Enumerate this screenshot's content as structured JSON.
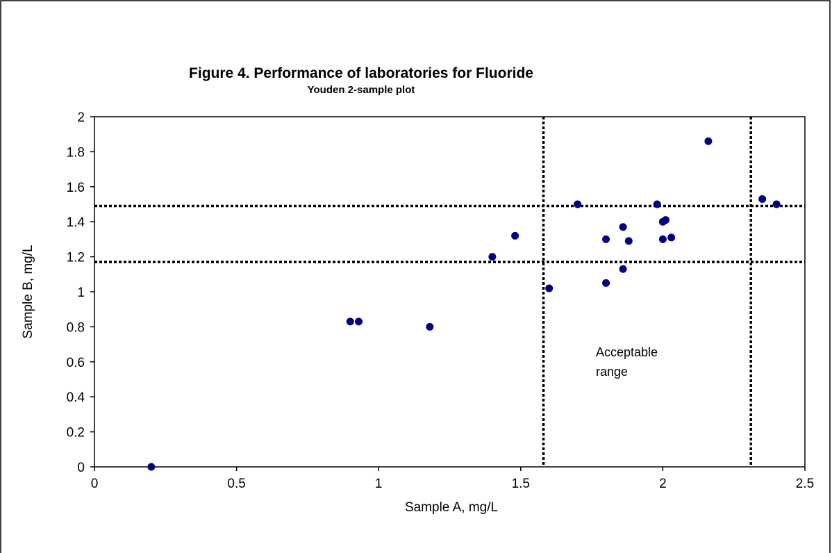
{
  "chart_data": {
    "type": "scatter",
    "title": "Figure 4. Performance of laboratories for Fluoride",
    "subtitle": "Youden 2-sample plot",
    "x_label": "Sample A, mg/L",
    "y_label": "Sample B, mg/L",
    "color": "#000080",
    "x": [
      0.2,
      0.9,
      0.93,
      1.18,
      1.4,
      1.48,
      1.6,
      1.7,
      1.8,
      1.8,
      1.86,
      1.86,
      1.88,
      1.98,
      2.0,
      2.01,
      2.0,
      2.03,
      2.16,
      2.35,
      2.4
    ],
    "values": [
      0,
      0.83,
      0.83,
      0.8,
      1.2,
      1.32,
      1.02,
      1.5,
      1.3,
      1.05,
      1.37,
      1.13,
      1.29,
      1.5,
      1.4,
      1.41,
      1.3,
      1.31,
      1.86,
      1.53,
      1.5
    ],
    "xlim": [
      0,
      2.5
    ],
    "ylim": [
      0,
      2
    ],
    "xticks": [
      0,
      0.5,
      1,
      1.5,
      2,
      2.5
    ],
    "yticks": [
      0,
      0.2,
      0.4,
      0.6,
      0.8,
      1,
      1.2,
      1.4,
      1.6,
      1.8,
      2
    ],
    "vlines": [
      1.58,
      2.31
    ],
    "hlines": [
      1.17,
      1.49
    ],
    "annotation": [
      "Acceptable",
      "range"
    ]
  }
}
